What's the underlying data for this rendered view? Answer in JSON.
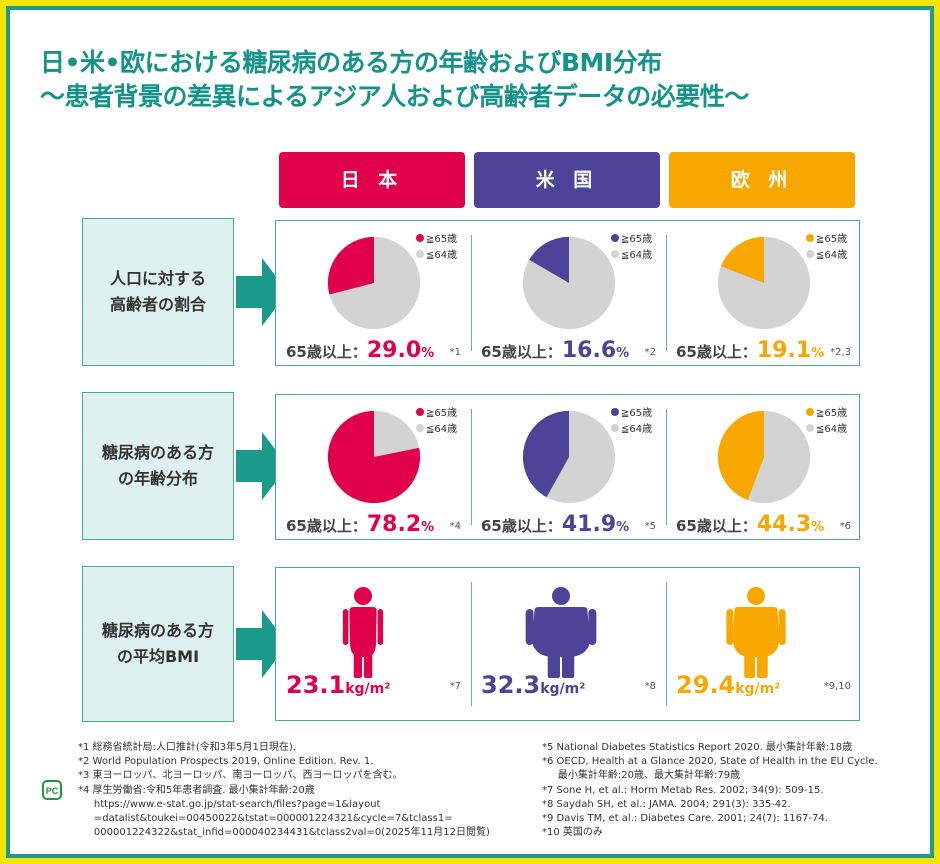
{
  "title": {
    "line1": "日•米•欧における糖尿病のある方の年齢およびBMI分布",
    "line2": "〜患者背景の差異によるアジア人および高齢者データの必要性〜"
  },
  "regions": [
    {
      "label": "日 本",
      "color": "#e1004a"
    },
    {
      "label": "米 国",
      "color": "#4d449a"
    },
    {
      "label": "欧 州",
      "color": "#f7a700"
    }
  ],
  "colors": {
    "other_slice": "#d3d3d3",
    "accent": "#13938a"
  },
  "legend": {
    "over65": "≧65歳",
    "under64": "≦64歳"
  },
  "value_prefix": "65歳以上：",
  "percent_sign": "%",
  "rows": {
    "population": {
      "label": "人口に対する\n高齢者の割合",
      "values": [
        29.0,
        16.6,
        19.1
      ],
      "display": [
        "29.0",
        "16.6",
        "19.1"
      ],
      "notes": [
        "*1",
        "*2",
        "*2,3"
      ]
    },
    "diabetes": {
      "label": "糖尿病のある方\nの年齢分布",
      "values": [
        78.2,
        41.9,
        44.3
      ],
      "display": [
        "78.2",
        "41.9",
        "44.3"
      ],
      "notes": [
        "*4",
        "*5",
        "*6"
      ]
    },
    "bmi": {
      "label": "糖尿病のある方\nの平均BMI",
      "values": [
        "23.1",
        "32.3",
        "29.4"
      ],
      "unit": "kg/m²",
      "notes": [
        "*7",
        "*8",
        "*9,10"
      ]
    }
  },
  "footnotes_left": [
    "*1 総務省統計局:人口推計(令和3年5月1日現在).",
    "*2 World Population Prospects 2019, Online Edition. Rev. 1.",
    "*3 東ヨーロッパ、北ヨーロッパ、南ヨーロッパ、西ヨーロッパを含む。",
    "*4 厚生労働省:令和5年患者調査. 最小集計年齢:20歳",
    "     https://www.e-stat.go.jp/stat-search/files?page=1&layout",
    "     =datalist&toukei=00450022&tstat=000001224321&cycle=7&tclass1=",
    "     000001224322&stat_infid=000040234431&tclass2val=0(2025年11月12日閲覧)"
  ],
  "footnotes_right": [
    "*5 National Diabetes Statistics Report 2020. 最小集計年齢:18歳",
    "*6 OECD, Health at a Glance 2020, State of Health in the EU Cycle.",
    "     最小集計年齢:20歳、最大集計年齢:79歳",
    "*7 Sone H, et al.: Horm Metab Res. 2002; 34(9): 509-15.",
    "*8 Saydah SH, et al.: JAMA. 2004; 291(3): 335-42.",
    "*9 Davis TM, et al.: Diabetes Care. 2001; 24(7): 1167-74.",
    "*10 英国のみ"
  ],
  "logo_text": "PC"
}
